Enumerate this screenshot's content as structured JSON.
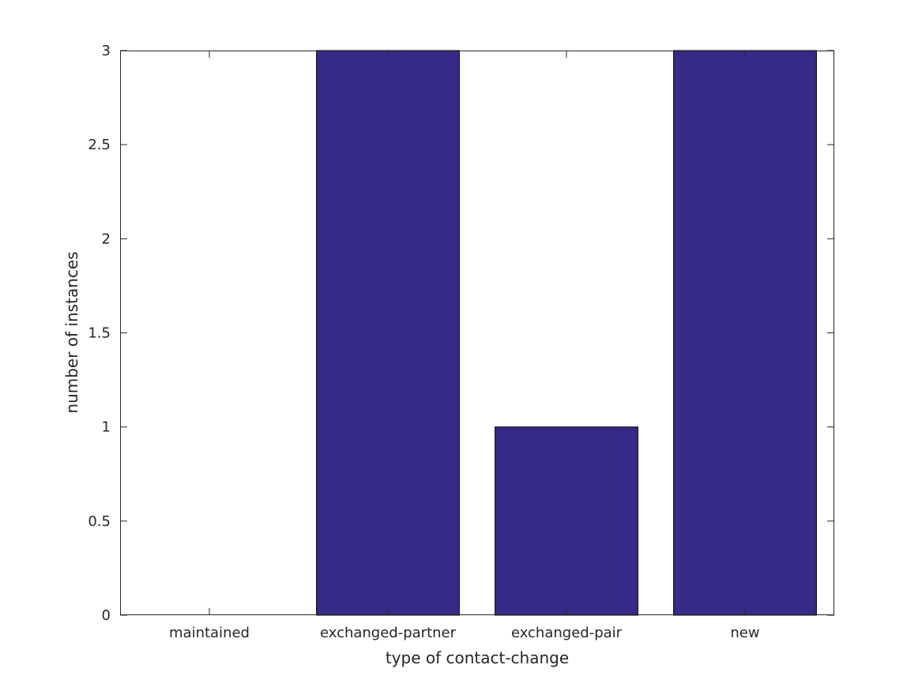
{
  "chart_data": {
    "type": "bar",
    "title": "",
    "xlabel": "type of contact-change",
    "ylabel": "number of instances",
    "categories": [
      "maintained",
      "exchanged-partner",
      "exchanged-pair",
      "new"
    ],
    "values": [
      0,
      3,
      1,
      3
    ],
    "ylim": [
      0,
      3
    ],
    "yticks": [
      0,
      0.5,
      1,
      1.5,
      2,
      2.5,
      3
    ],
    "ytick_labels": [
      "0",
      "0.5",
      "1",
      "1.5",
      "2",
      "2.5",
      "3"
    ],
    "grid": false,
    "legend": "none",
    "bar_color": "#352a87",
    "edge_color": "#000000"
  }
}
